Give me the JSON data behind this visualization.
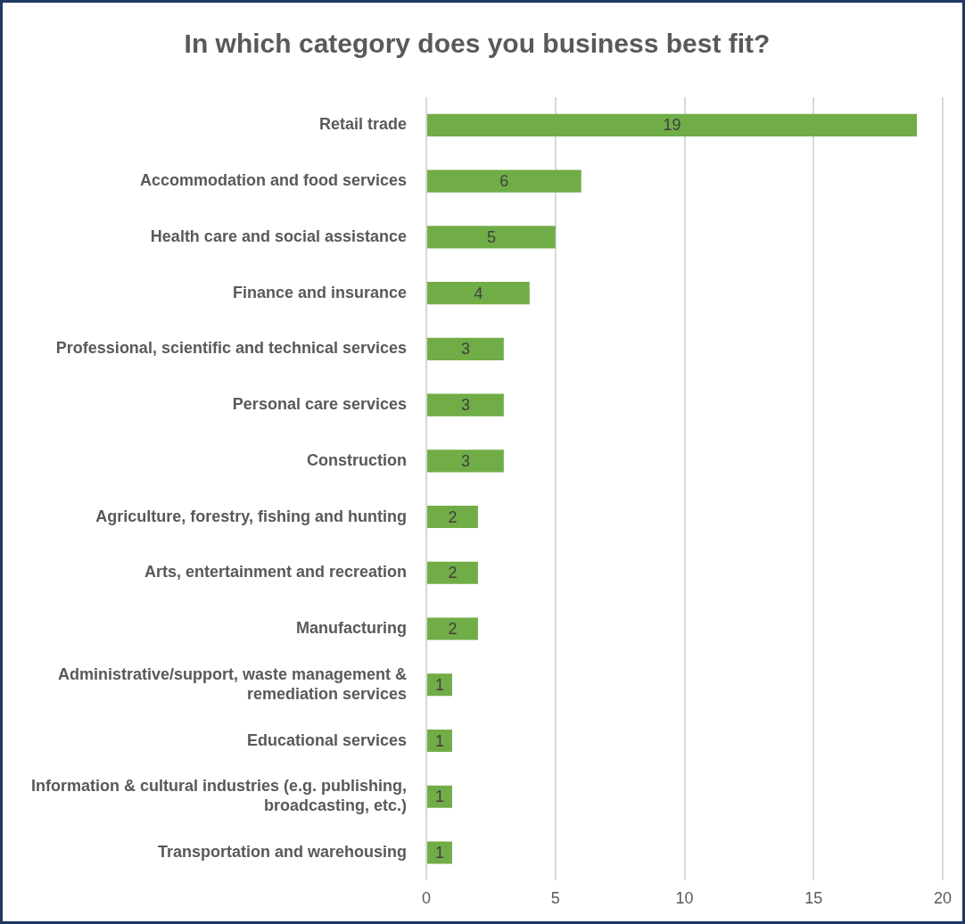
{
  "chart_data": {
    "type": "bar",
    "orientation": "horizontal",
    "title": "In which category does you business best fit?",
    "categories": [
      "Retail trade",
      "Accommodation and food services",
      "Health care and social assistance",
      "Finance and insurance",
      "Professional, scientific and technical services",
      "Personal care services",
      "Construction",
      "Agriculture, forestry, fishing and hunting",
      "Arts, entertainment and recreation",
      "Manufacturing",
      "Administrative/support, waste management & remediation services",
      "Educational services",
      "Information & cultural industries (e.g. publishing, broadcasting, etc.)",
      "Transportation and warehousing"
    ],
    "values": [
      19,
      6,
      5,
      4,
      3,
      3,
      3,
      2,
      2,
      2,
      1,
      1,
      1,
      1
    ],
    "color": "#70ad47",
    "xlim": [
      0,
      20
    ],
    "xticks": [
      0,
      5,
      10,
      15,
      20
    ],
    "grid": "x",
    "data_labels": true,
    "legend": false
  }
}
